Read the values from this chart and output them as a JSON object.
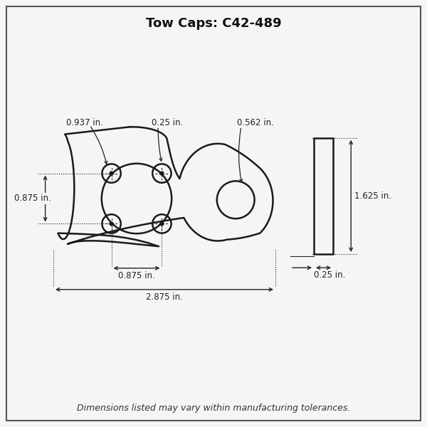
{
  "title": "Tow Caps: C42-489",
  "footer": "Dimensions listed may vary within manufacturing tolerances.",
  "bg_color": "#f5f5f5",
  "border_color": "#333333",
  "line_color": "#1a1a1a",
  "dim_color": "#222222",
  "title_fontsize": 13,
  "footer_fontsize": 9,
  "dim_fontsize": 8.5,
  "annotations": {
    "bolt_hole_dia": "0.937 in.",
    "small_hole_dia": "0.25 in.",
    "side_hole_dia": "0.562 in.",
    "height_dim": "0.875 in.",
    "bolt_spacing": "0.875 in.",
    "total_width": "2.875 in.",
    "side_height": "1.625 in.",
    "side_thickness": "0.25 in."
  }
}
